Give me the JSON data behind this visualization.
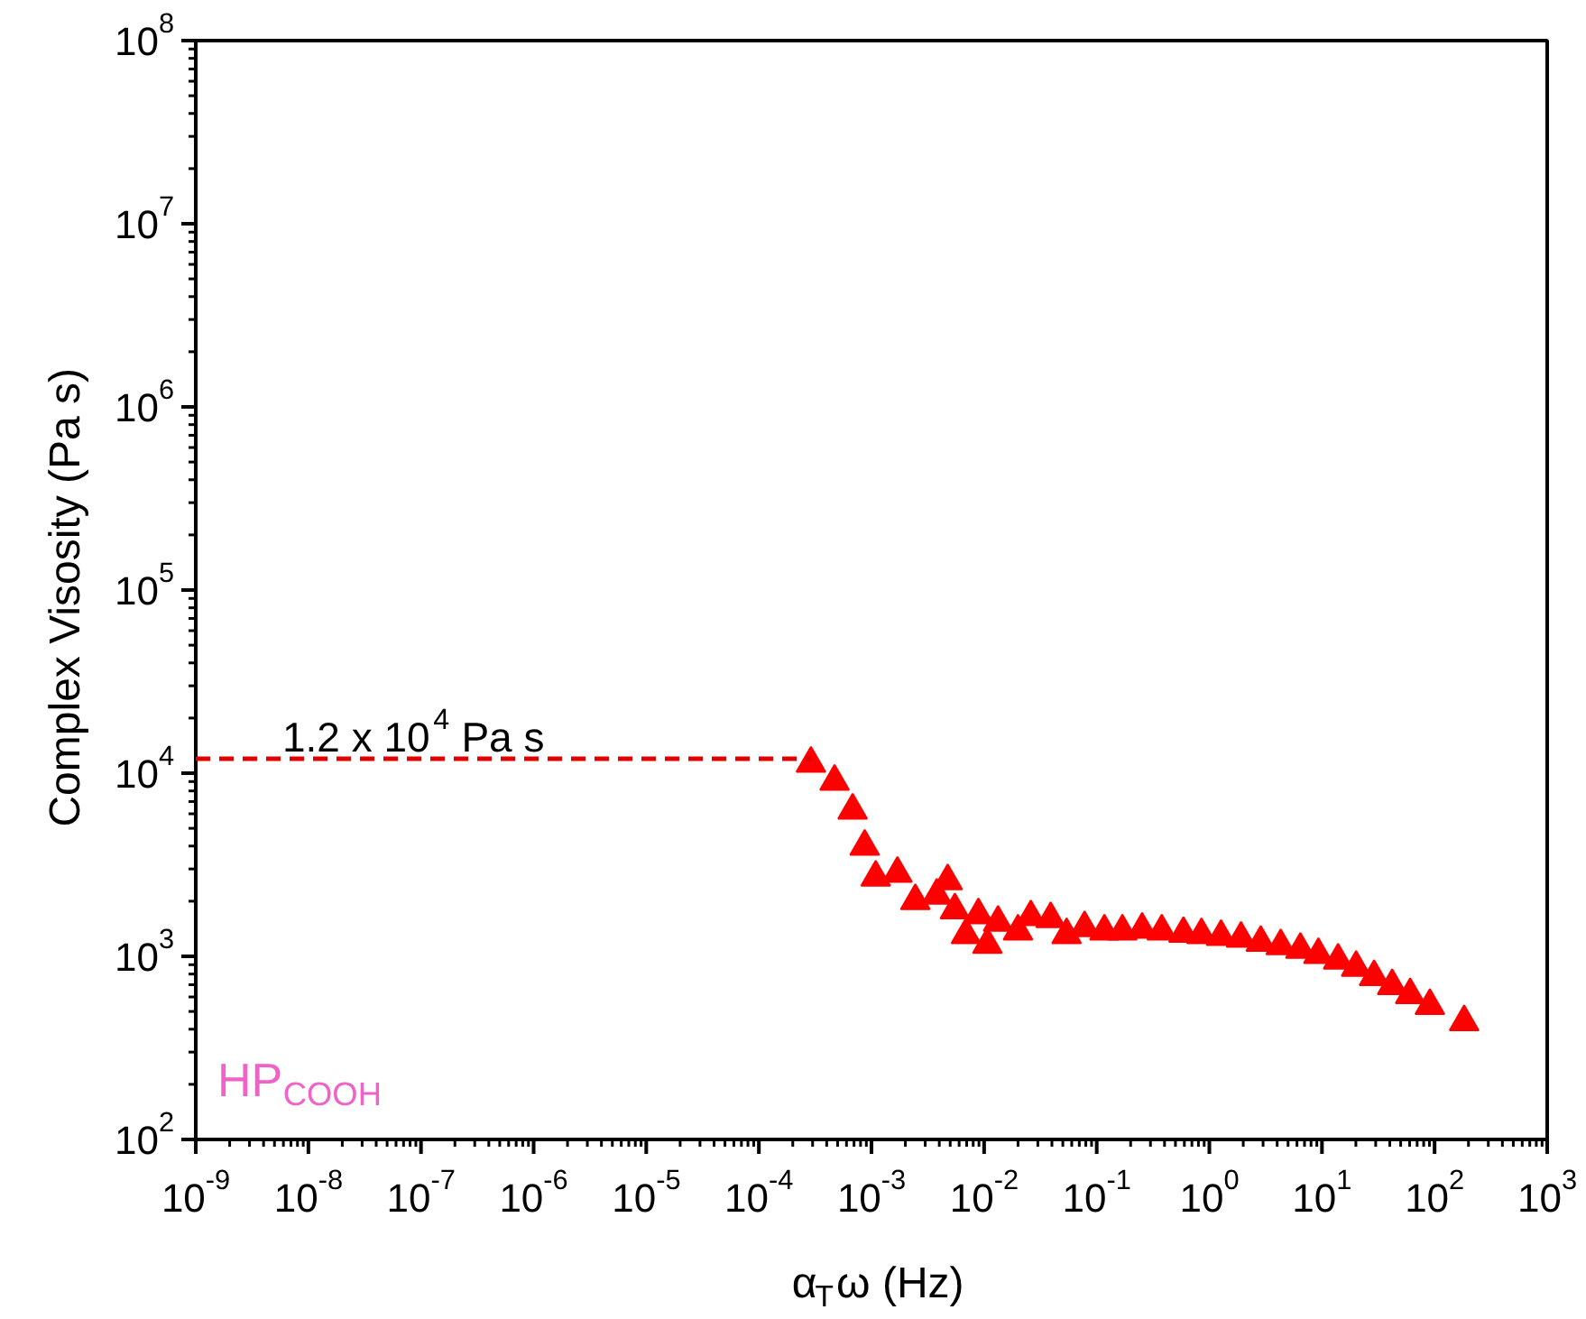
{
  "chart_data": {
    "type": "scatter",
    "xlabel": "α$_{T}$ω (Hz)",
    "ylabel": "Complex Visosity (Pa s)",
    "log": "xy",
    "marker": "triangle",
    "grid": false,
    "xlim": [
      1e-09,
      1000
    ],
    "ylim": [
      100,
      100000000
    ],
    "xticks": [
      {
        "value": 1e-09,
        "label": "10$^{-9}$"
      },
      {
        "value": 1e-08,
        "label": "10$^{-8}$"
      },
      {
        "value": 1e-07,
        "label": "10$^{-7}$"
      },
      {
        "value": 1e-06,
        "label": "10$^{-6}$"
      },
      {
        "value": 1e-05,
        "label": "10$^{-5}$"
      },
      {
        "value": 0.0001,
        "label": "10$^{-4}$"
      },
      {
        "value": 0.001,
        "label": "10$^{-3}$"
      },
      {
        "value": 0.01,
        "label": "10$^{-2}$"
      },
      {
        "value": 0.1,
        "label": "10$^{-1}$"
      },
      {
        "value": 1,
        "label": "10$^{0}$"
      },
      {
        "value": 10,
        "label": "10$^{1}$"
      },
      {
        "value": 100,
        "label": "10$^{2}$"
      },
      {
        "value": 1000,
        "label": "10$^{3}$"
      }
    ],
    "yticks": [
      {
        "value": 100,
        "label": "10$^{2}$"
      },
      {
        "value": 1000,
        "label": "10$^{3}$"
      },
      {
        "value": 10000,
        "label": "10$^{4}$"
      },
      {
        "value": 100000,
        "label": "10$^{5}$"
      },
      {
        "value": 1000000,
        "label": "10$^{6}$"
      },
      {
        "value": 10000000,
        "label": "10$^{7}$"
      },
      {
        "value": 100000000,
        "label": "10$^{8}$"
      }
    ],
    "series": [
      {
        "color": "#ff0000",
        "x": [
          0.00029,
          0.00047,
          0.00068,
          0.00087,
          0.00109,
          0.0017,
          0.00245,
          0.0038,
          0.00475,
          0.0055,
          0.0069,
          0.0089,
          0.0107,
          0.0133,
          0.02,
          0.026,
          0.039,
          0.054,
          0.078,
          0.117,
          0.169,
          0.253,
          0.378,
          0.589,
          0.851,
          1.27,
          1.91,
          2.86,
          4.3,
          6.43,
          9.29,
          13.9,
          20.1,
          29,
          42,
          60.7,
          90.8,
          183
        ],
        "values": [
          11300,
          9000,
          6260,
          3980,
          2700,
          2830,
          2010,
          2150,
          2580,
          1790,
          1310,
          1680,
          1160,
          1530,
          1370,
          1640,
          1600,
          1310,
          1430,
          1370,
          1370,
          1400,
          1370,
          1330,
          1310,
          1280,
          1250,
          1190,
          1140,
          1090,
          1020,
          950,
          867,
          773,
          690,
          616,
          537,
          438
        ]
      }
    ],
    "ref_lines": [
      {
        "axis": "y",
        "value": 12000,
        "label": "1.2 x 10$^{4}$ Pa s",
        "color": "#e00000",
        "line_style": "dashed"
      }
    ],
    "annotations": [
      "HP$_{COOH}$"
    ]
  }
}
